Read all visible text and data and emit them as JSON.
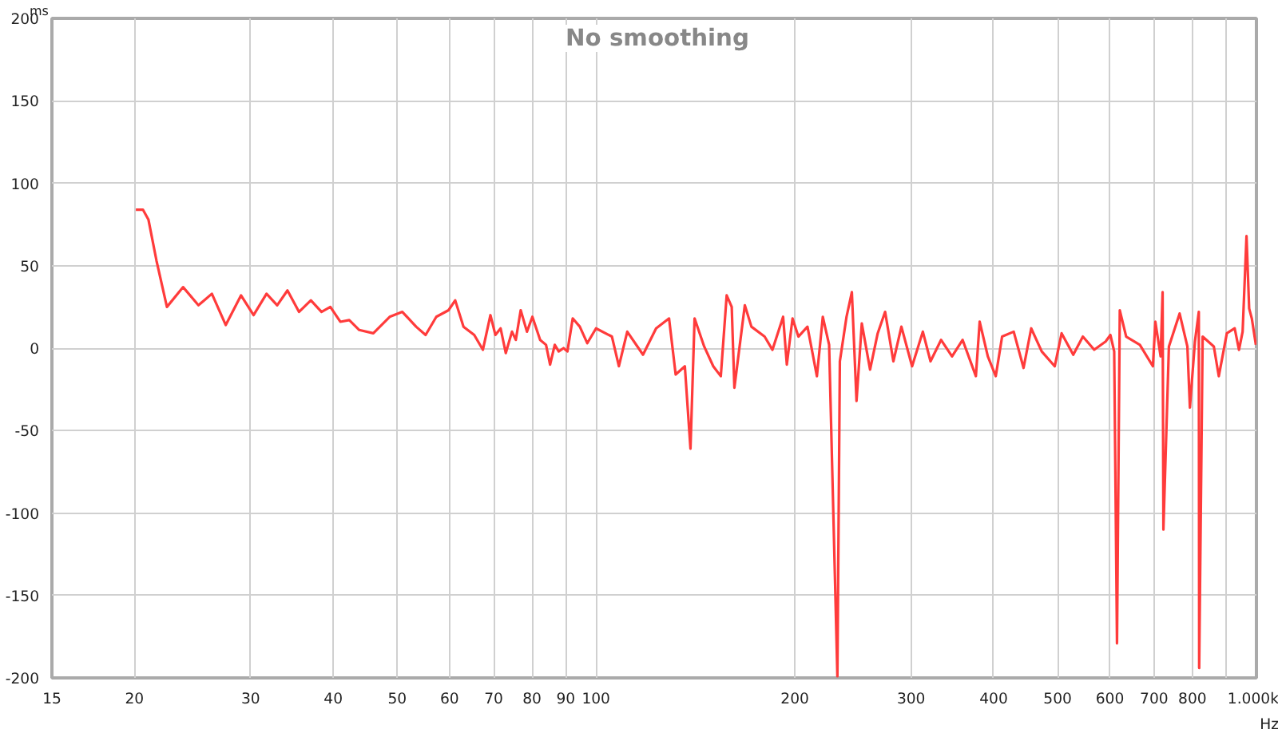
{
  "chart_data": {
    "type": "line",
    "title": "No smoothing",
    "xlabel": "Hz",
    "ylabel": "ms",
    "log": "x",
    "grid": true,
    "marker": "none",
    "line_style": "solid",
    "xlim": [
      15,
      1000
    ],
    "ylim": [
      -200,
      200
    ],
    "xticks": [
      15,
      20,
      30,
      40,
      50,
      60,
      70,
      80,
      90,
      100,
      200,
      300,
      400,
      500,
      600,
      700,
      800,
      {
        "value": 900,
        "label": null
      },
      {
        "value": 1000,
        "label": "1.000k"
      }
    ],
    "yticks": [
      -200,
      -150,
      -100,
      -50,
      0,
      50,
      100,
      150,
      200
    ],
    "series": [
      {
        "color": "#ff3b3b",
        "x": [
          20.1,
          20.6,
          21.0,
          21.6,
          22.4,
          23.7,
          25.0,
          26.2,
          27.5,
          29.0,
          30.3,
          31.7,
          32.9,
          34.1,
          35.5,
          37.0,
          38.4,
          39.6,
          41.0,
          42.3,
          43.8,
          46.0,
          48.7,
          50.9,
          53.4,
          55.2,
          57.3,
          59.8,
          61.2,
          63.0,
          65.4,
          67.4,
          69.2,
          70.4,
          71.7,
          73.0,
          74.6,
          75.6,
          76.9,
          78.6,
          80.1,
          82.3,
          84.0,
          85.2,
          86.6,
          87.8,
          89.3,
          90.5,
          92.2,
          94.5,
          97,
          100,
          105.7,
          108.3,
          111.5,
          117.8,
          123.3,
          129,
          132,
          136.3,
          139,
          141,
          145.8,
          150.5,
          154.5,
          157.7,
          160.5,
          162,
          168,
          171.9,
          180,
          185,
          192,
          194.5,
          198.4,
          202.5,
          209,
          216,
          220.5,
          225.4,
          232,
          234,
          239.5,
          244,
          248,
          252.6,
          260,
          267,
          274,
          282,
          290,
          301,
          312.5,
          321,
          333,
          346,
          359,
          376,
          381,
          392,
          403,
          412,
          429,
          444,
          456,
          473,
          495,
          507,
          528,
          546,
          568,
          591,
          601,
          609,
          615,
          621,
          635,
          666,
          697,
          703,
          716,
          721,
          723,
          737,
          765,
          786,
          793,
          807,
          818,
          819,
          829,
          862,
          877,
          902,
          927,
          941,
          953,
          966,
          975,
          984,
          998
        ],
        "values": [
          84,
          84,
          78,
          53,
          25,
          37,
          26,
          33,
          14,
          32,
          20,
          33,
          26,
          35,
          22,
          29,
          22,
          25,
          16,
          17,
          11,
          9,
          19,
          22,
          13,
          8,
          19,
          23,
          29,
          13,
          8,
          -1,
          20,
          8,
          12,
          -3,
          10,
          5,
          23,
          10,
          19,
          5,
          2,
          -10,
          2,
          -2,
          0,
          -2,
          18,
          13,
          3,
          12,
          7,
          -11,
          10,
          -4,
          12,
          18,
          -16,
          -11,
          -61,
          18,
          1,
          -11,
          -17,
          32,
          25,
          -24,
          26,
          13,
          7,
          -1,
          19,
          -10,
          18,
          7,
          13,
          -17,
          19,
          2,
          -199,
          -8,
          19,
          34,
          -32,
          15,
          -13,
          9,
          22,
          -8,
          13,
          -11,
          10,
          -8,
          5,
          -5,
          5,
          -17,
          16,
          -5,
          -17,
          7,
          10,
          -12,
          12,
          -2,
          -11,
          9,
          -4,
          7,
          -1,
          4,
          8,
          -2,
          -179,
          23,
          7,
          2,
          -11,
          16,
          -5,
          34,
          -110,
          1,
          21,
          1,
          -36,
          4,
          22,
          -194,
          7,
          1,
          -17,
          9,
          12,
          -1,
          10,
          68,
          24,
          18,
          2
        ]
      }
    ]
  }
}
